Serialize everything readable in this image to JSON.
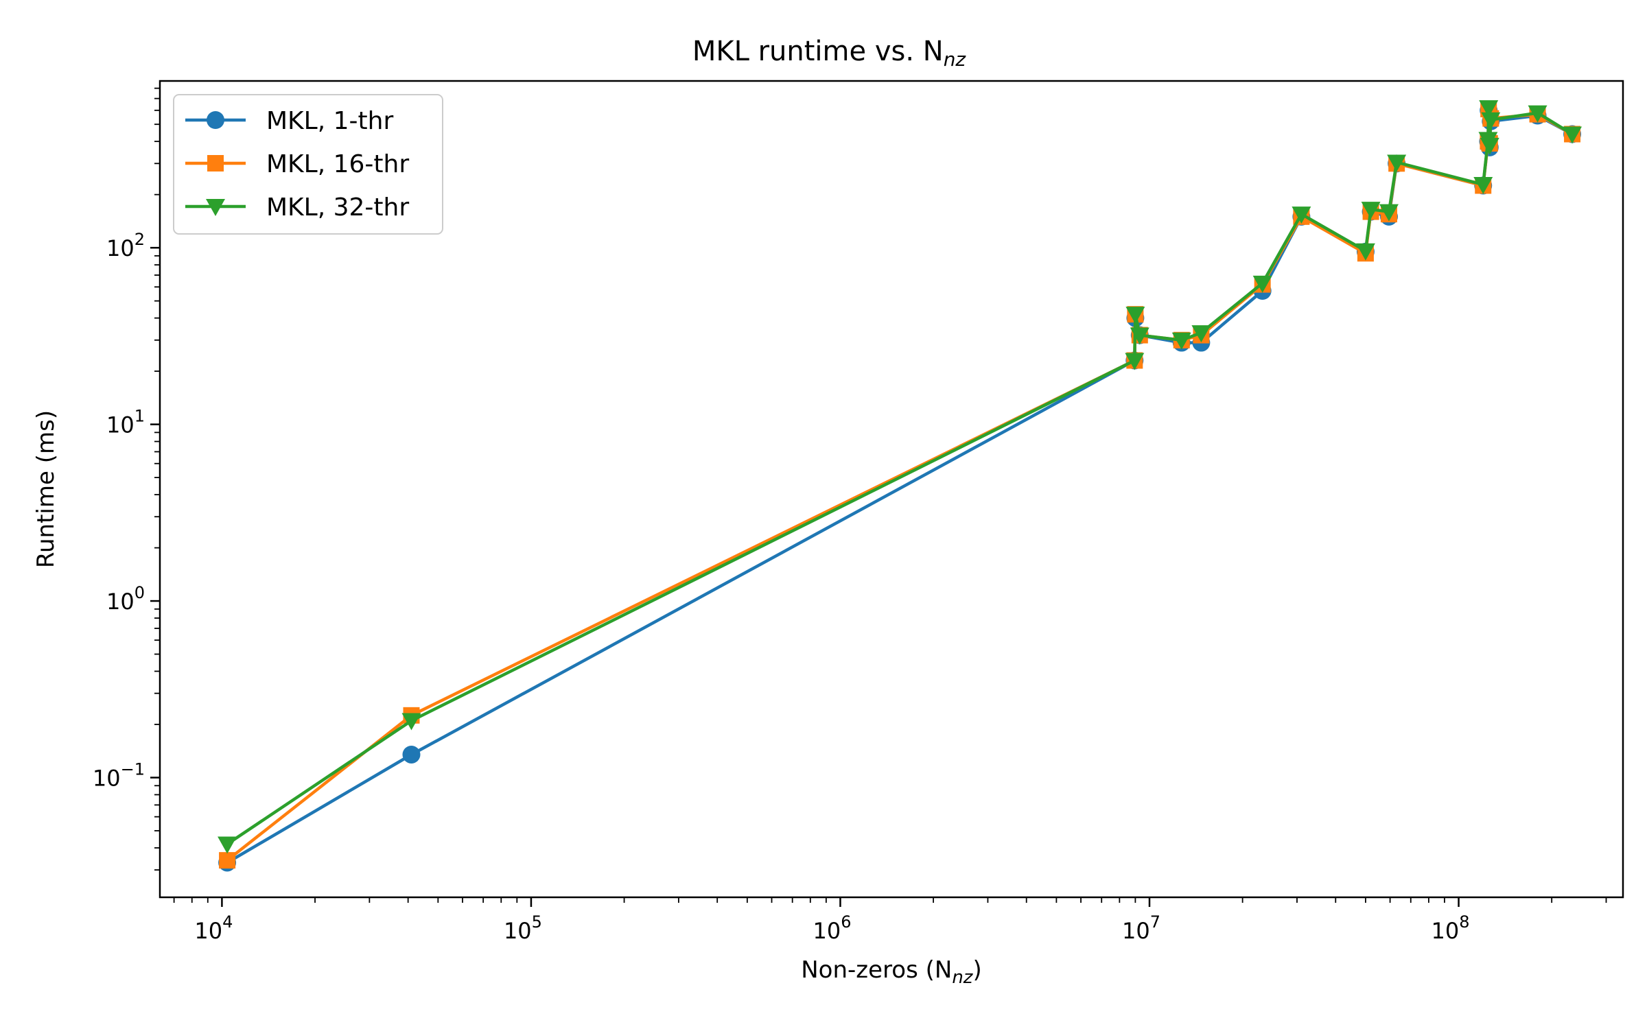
{
  "chart_data": {
    "type": "line",
    "title": "MKL runtime vs. N",
    "title_subscript": "nz",
    "xlabel": "Non-zeros (N",
    "xlabel_subscript": "nz",
    "xlabel_suffix": ")",
    "ylabel": "Runtime (ms)",
    "xscale": "log",
    "yscale": "log",
    "xlim": [
      6300,
      340000000
    ],
    "ylim": [
      0.021,
      880
    ],
    "x_ticks": [
      {
        "base": "10",
        "exp": "4",
        "value": 10000
      },
      {
        "base": "10",
        "exp": "5",
        "value": 100000
      },
      {
        "base": "10",
        "exp": "6",
        "value": 1000000
      },
      {
        "base": "10",
        "exp": "7",
        "value": 10000000
      },
      {
        "base": "10",
        "exp": "8",
        "value": 100000000
      }
    ],
    "y_ticks": [
      {
        "base": "10",
        "exp": "−1",
        "value": 0.1
      },
      {
        "base": "10",
        "exp": "0",
        "value": 1
      },
      {
        "base": "10",
        "exp": "1",
        "value": 10
      },
      {
        "base": "10",
        "exp": "2",
        "value": 100
      }
    ],
    "grid": false,
    "legend_position": "top-left",
    "series": [
      {
        "name": "MKL, 1-thr",
        "color": "#1f77b4",
        "marker": "circle",
        "points": [
          [
            10400,
            0.033
          ],
          [
            41000,
            0.135
          ],
          [
            8950000,
            23
          ],
          [
            9000000,
            40
          ],
          [
            9300000,
            32
          ],
          [
            12700000,
            29
          ],
          [
            14700000,
            29
          ],
          [
            23200000,
            57
          ],
          [
            31000000,
            150
          ],
          [
            50000000,
            95
          ],
          [
            52000000,
            160
          ],
          [
            59500000,
            150
          ],
          [
            63000000,
            300
          ],
          [
            120000000,
            225
          ],
          [
            124500000,
            400
          ],
          [
            125000000,
            600
          ],
          [
            126000000,
            370
          ],
          [
            127000000,
            520
          ],
          [
            180000000,
            560
          ],
          [
            233000000,
            440
          ]
        ]
      },
      {
        "name": "MKL, 16-thr",
        "color": "#ff7f0e",
        "marker": "square",
        "points": [
          [
            10400,
            0.034
          ],
          [
            41000,
            0.225
          ],
          [
            8950000,
            23
          ],
          [
            9000000,
            42
          ],
          [
            9300000,
            32
          ],
          [
            12700000,
            30
          ],
          [
            14700000,
            32
          ],
          [
            23200000,
            62
          ],
          [
            31000000,
            150
          ],
          [
            50000000,
            93
          ],
          [
            52000000,
            160
          ],
          [
            59500000,
            155
          ],
          [
            63000000,
            300
          ],
          [
            120000000,
            225
          ],
          [
            124500000,
            400
          ],
          [
            125000000,
            610
          ],
          [
            126000000,
            390
          ],
          [
            127000000,
            540
          ],
          [
            180000000,
            570
          ],
          [
            233000000,
            440
          ]
        ]
      },
      {
        "name": "MKL, 32-thr",
        "color": "#2ca02c",
        "marker": "triangle-down",
        "points": [
          [
            10400,
            0.042
          ],
          [
            41000,
            0.21
          ],
          [
            8950000,
            23
          ],
          [
            9000000,
            42
          ],
          [
            9300000,
            32
          ],
          [
            12700000,
            30
          ],
          [
            14700000,
            33
          ],
          [
            23200000,
            63
          ],
          [
            31000000,
            155
          ],
          [
            50000000,
            96
          ],
          [
            52000000,
            165
          ],
          [
            59500000,
            160
          ],
          [
            63000000,
            305
          ],
          [
            120000000,
            228
          ],
          [
            124500000,
            410
          ],
          [
            125000000,
            620
          ],
          [
            126000000,
            380
          ],
          [
            127000000,
            530
          ],
          [
            180000000,
            580
          ],
          [
            233000000,
            440
          ]
        ]
      }
    ]
  }
}
